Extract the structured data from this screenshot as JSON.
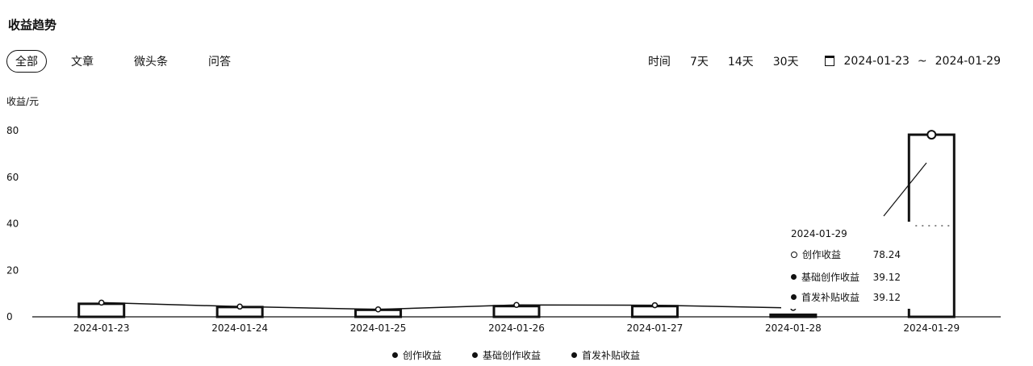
{
  "page_title": "收益趋势",
  "tabs": [
    {
      "label": "全部",
      "active": true
    },
    {
      "label": "文章",
      "active": false
    },
    {
      "label": "微头条",
      "active": false
    },
    {
      "label": "问答",
      "active": false
    }
  ],
  "range": {
    "label": "时间",
    "options": [
      "7天",
      "14天",
      "30天"
    ],
    "start_date": "2024-01-23",
    "separator": "~",
    "end_date": "2024-01-29"
  },
  "tooltip": {
    "date": "2024-01-29",
    "rows": [
      {
        "name": "创作收益",
        "value": "78.24"
      },
      {
        "name": "基础创作收益",
        "value": "39.12"
      },
      {
        "name": "首发补贴收益",
        "value": "39.12"
      }
    ]
  },
  "legend": [
    "创作收益",
    "基础创作收益",
    "首发补贴收益"
  ],
  "chart_data": {
    "type": "bar",
    "ylabel": "收益/元",
    "ylim": [
      0,
      80
    ],
    "yticks": [
      0,
      20,
      40,
      60,
      80
    ],
    "categories": [
      "2024-01-23",
      "2024-01-24",
      "2024-01-25",
      "2024-01-26",
      "2024-01-27",
      "2024-01-28",
      "2024-01-29"
    ],
    "series": [
      {
        "name": "创作收益",
        "type": "line",
        "values": [
          6.1,
          4.4,
          3.2,
          5.1,
          5.0,
          3.8,
          78.24
        ]
      },
      {
        "name": "基础创作收益",
        "type": "bar",
        "values": [
          5.6,
          4.2,
          3.0,
          4.6,
          4.6,
          0.9,
          39.12
        ]
      },
      {
        "name": "首发补贴收益",
        "type": "bar",
        "values": [
          0,
          0,
          0,
          0,
          0,
          0,
          39.12
        ]
      }
    ],
    "grid": false,
    "legend_position": "bottom"
  }
}
